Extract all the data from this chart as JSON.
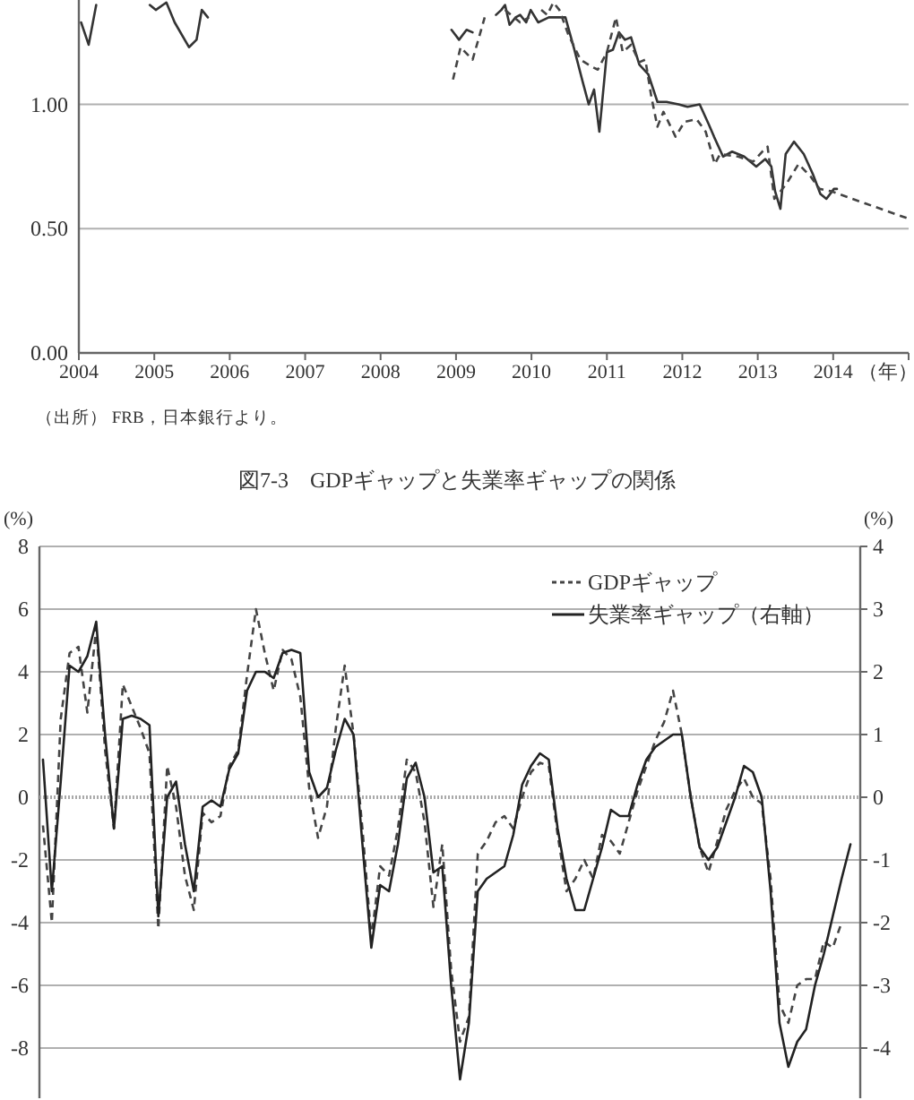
{
  "chart_data": [
    {
      "type": "line",
      "xlabel": "（年）",
      "annotations": [
        "（出所） FRB，日本銀行より。"
      ],
      "xlim": [
        2004,
        2015
      ],
      "xticks": [
        2004,
        2005,
        2006,
        2007,
        2008,
        2009,
        2010,
        2011,
        2012,
        2013,
        2014
      ],
      "ylim": [
        0,
        1.42
      ],
      "yticks": [
        {
          "value": 0,
          "label": "0.00"
        },
        {
          "value": 0.5,
          "label": "0.50"
        },
        {
          "value": 1,
          "label": "1.00"
        }
      ],
      "grid": "y",
      "legend": false,
      "series": [
        {
          "color": "#333333",
          "line_style": "solid",
          "x": [
            2004.03,
            2004.13,
            2004.23,
            null,
            2004.94,
            2005.02,
            2005.16,
            2005.27,
            2005.46,
            2005.56,
            2005.63,
            2005.71,
            null,
            2008.94,
            2009.04,
            2009.14,
            2009.22,
            null,
            2009.53,
            2009.6,
            2009.65,
            2009.71,
            2009.79,
            2009.85,
            2009.93,
            2009.99,
            2010.09,
            2010.23,
            2010.45,
            2010.56,
            2010.68,
            2010.76,
            2010.83,
            2010.9,
            2011.0,
            2011.08,
            2011.16,
            2011.24,
            2011.32,
            2011.43,
            2011.55,
            2011.67,
            2011.79,
            2011.95,
            2012.07,
            2012.23,
            2012.35,
            2012.42,
            2012.54,
            2012.66,
            2012.82,
            2012.98,
            2013.1,
            2013.18,
            2013.23,
            2013.3,
            2013.37,
            2013.48,
            2013.61,
            2013.73,
            2013.83,
            2013.91,
            2014.01,
            2014.05
          ],
          "values": [
            1.33,
            1.24,
            1.4,
            null,
            1.4,
            1.38,
            1.41,
            1.33,
            1.23,
            1.26,
            1.38,
            1.35,
            null,
            1.3,
            1.26,
            1.3,
            1.29,
            null,
            1.36,
            1.38,
            1.4,
            1.32,
            1.35,
            1.36,
            1.33,
            1.38,
            1.33,
            1.35,
            1.35,
            1.23,
            1.09,
            1.0,
            1.06,
            0.89,
            1.21,
            1.22,
            1.29,
            1.26,
            1.27,
            1.16,
            1.12,
            1.01,
            1.01,
            1.0,
            0.99,
            1.0,
            0.92,
            0.87,
            0.79,
            0.81,
            0.79,
            0.75,
            0.78,
            0.75,
            0.65,
            0.58,
            0.8,
            0.85,
            0.8,
            0.72,
            0.64,
            0.62,
            0.66,
            0.66
          ]
        },
        {
          "color": "#444444",
          "line_style": "dashed",
          "x": [
            2008.96,
            2009.06,
            2009.22,
            2009.38,
            null,
            2009.65,
            2009.85,
            2009.97,
            null,
            2010.13,
            2010.21,
            2010.29,
            2010.37,
            2010.49,
            2010.65,
            2010.81,
            2010.88,
            2011.0,
            2011.12,
            2011.21,
            2011.32,
            2011.43,
            2011.51,
            2011.59,
            2011.67,
            2011.75,
            2011.91,
            2012.03,
            2012.19,
            2012.31,
            2012.43,
            2012.5,
            2012.74,
            2012.94,
            2013.06,
            2013.13,
            2013.22,
            2013.38,
            2013.54,
            2013.7,
            2013.82,
            2013.98,
            2014.44,
            2015.0
          ],
          "values": [
            1.1,
            1.23,
            1.18,
            1.35,
            null,
            1.38,
            1.33,
            1.35,
            null,
            1.38,
            1.36,
            1.41,
            1.38,
            1.28,
            1.18,
            1.15,
            1.14,
            1.21,
            1.35,
            1.21,
            1.24,
            1.17,
            1.18,
            1.03,
            0.91,
            0.97,
            0.87,
            0.93,
            0.94,
            0.89,
            0.76,
            0.8,
            0.79,
            0.77,
            0.81,
            0.83,
            0.62,
            0.68,
            0.76,
            0.71,
            0.66,
            0.65,
            0.6,
            0.54
          ]
        }
      ]
    },
    {
      "type": "line",
      "title": "図7-3　GDPギャップと失業率ギャップの関係",
      "ylabel": "(%)",
      "y2label": "(%)",
      "ylim": [
        -9.6,
        8
      ],
      "yticks": [
        -8,
        -6,
        -4,
        -2,
        0,
        2,
        4,
        6,
        8
      ],
      "y2lim": [
        -4.8,
        4
      ],
      "y2ticks": [
        -4,
        -3,
        -2,
        -1,
        0,
        1,
        2,
        3,
        4
      ],
      "grid": "y",
      "legend": "top right",
      "ref_lines": [
        {
          "axis": "y",
          "value": 0,
          "color": "#aaaaaa",
          "line_style": "dotted"
        }
      ],
      "categories": [
        null,
        null,
        null,
        null,
        null,
        null,
        null,
        null,
        null,
        null,
        null,
        null,
        null,
        null,
        null,
        null,
        null,
        null,
        null,
        null,
        null,
        null,
        null,
        null,
        null,
        null,
        null,
        null,
        null,
        null,
        null,
        null,
        null,
        null,
        null,
        null,
        null,
        null,
        null,
        null,
        null,
        null,
        null,
        null,
        null,
        null,
        null,
        null,
        null,
        null,
        null,
        null,
        null,
        null,
        null,
        null,
        null,
        null,
        null,
        null,
        null,
        null,
        null,
        null,
        null,
        null,
        null,
        null,
        null,
        null,
        null,
        null,
        null,
        null,
        null,
        null,
        null,
        null,
        null,
        null,
        null,
        null,
        null,
        null,
        null,
        null,
        null,
        null,
        null,
        null,
        null,
        null
      ],
      "series": [
        {
          "name": "GDPギャップ",
          "color": "#444444",
          "line_style": "dashed",
          "values": [
            -0.9,
            -4.0,
            2.5,
            4.6,
            4.8,
            2.7,
            5.4,
            1.5,
            -1.0,
            3.6,
            2.9,
            2.2,
            1.4,
            -4.2,
            1.0,
            -0.3,
            -2.5,
            -3.6,
            -0.5,
            -0.8,
            -0.6,
            1.0,
            1.5,
            3.9,
            6.0,
            4.6,
            3.4,
            4.7,
            4.4,
            3.2,
            0.3,
            -1.3,
            -0.3,
            2.2,
            4.2,
            2.0,
            -1.0,
            -4.5,
            -2.2,
            -2.5,
            -1.0,
            1.2,
            0.8,
            -0.8,
            -3.5,
            -1.5,
            -5.5,
            -7.8,
            -7.0,
            -1.8,
            -1.4,
            -0.8,
            -0.6,
            -1.0,
            0.0,
            0.8,
            1.1,
            1.0,
            -1.2,
            -3.0,
            -2.6,
            -2.0,
            -2.6,
            -1.2,
            -1.4,
            -1.8,
            -0.8,
            0.2,
            1.0,
            1.8,
            2.4,
            3.4,
            2.0,
            0.0,
            -1.6,
            -2.4,
            -1.4,
            -0.4,
            0.2,
            0.6,
            0.0,
            -0.2,
            -2.6,
            -6.6,
            -7.2,
            -6.0,
            -5.8,
            -5.8,
            -4.6,
            -4.8,
            -4.0,
            null
          ]
        },
        {
          "name": "失業率ギャップ（右軸）",
          "color": "#222222",
          "line_style": "solid",
          "axis": "y2",
          "values": [
            0.6,
            -1.5,
            0.25,
            2.1,
            2.0,
            2.25,
            2.8,
            1.0,
            -0.5,
            1.25,
            1.3,
            1.25,
            1.15,
            -1.9,
            0.0,
            0.25,
            -0.75,
            -1.5,
            -0.15,
            -0.05,
            -0.15,
            0.45,
            0.7,
            1.7,
            2.0,
            2.0,
            1.9,
            2.3,
            2.35,
            2.3,
            0.4,
            0.0,
            0.15,
            0.75,
            1.25,
            1.0,
            -0.75,
            -2.4,
            -1.4,
            -1.5,
            -0.75,
            0.3,
            0.55,
            0.0,
            -1.2,
            -1.1,
            -3.0,
            -4.5,
            -3.6,
            -1.5,
            -1.3,
            -1.2,
            -1.1,
            -0.6,
            0.2,
            0.5,
            0.7,
            0.6,
            -0.5,
            -1.3,
            -1.8,
            -1.8,
            -1.3,
            -0.8,
            -0.2,
            -0.3,
            -0.3,
            0.2,
            0.6,
            0.8,
            0.9,
            1.0,
            1.0,
            0.0,
            -0.8,
            -1.0,
            -0.8,
            -0.4,
            0.0,
            0.5,
            0.4,
            0.0,
            -1.5,
            -3.6,
            -4.3,
            -3.9,
            -3.7,
            -3.0,
            -2.5,
            -1.9,
            -1.3,
            -0.75
          ]
        }
      ]
    }
  ]
}
